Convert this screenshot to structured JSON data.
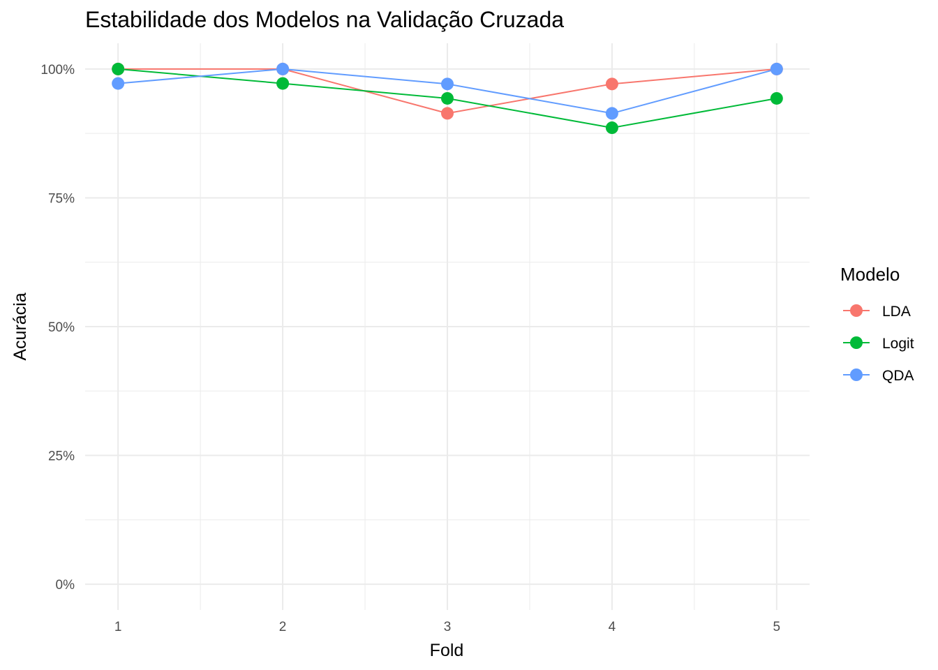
{
  "chart_data": {
    "type": "line",
    "title": "Estabilidade dos Modelos na Validação Cruzada",
    "xlabel": "Fold",
    "ylabel": "Acurácia",
    "x": [
      1,
      2,
      3,
      4,
      5
    ],
    "x_tick_labels": [
      "1",
      "2",
      "3",
      "4",
      "5"
    ],
    "y_ticks": [
      0,
      0.25,
      0.5,
      0.75,
      1.0
    ],
    "y_tick_labels": [
      "0%",
      "25%",
      "50%",
      "75%",
      "100%"
    ],
    "ylim": [
      -0.05,
      1.05
    ],
    "xlim": [
      0.8,
      5.2
    ],
    "grid": true,
    "legend": {
      "title": "Modelo",
      "position": "right"
    },
    "series": [
      {
        "name": "LDA",
        "color": "#F8766D",
        "values": [
          1.0,
          1.0,
          0.914,
          0.971,
          1.0
        ]
      },
      {
        "name": "Logit",
        "color": "#00BA38",
        "values": [
          1.0,
          0.972,
          0.943,
          0.886,
          0.943
        ]
      },
      {
        "name": "QDA",
        "color": "#619CFF",
        "values": [
          0.972,
          1.0,
          0.971,
          0.914,
          1.0
        ]
      }
    ]
  }
}
